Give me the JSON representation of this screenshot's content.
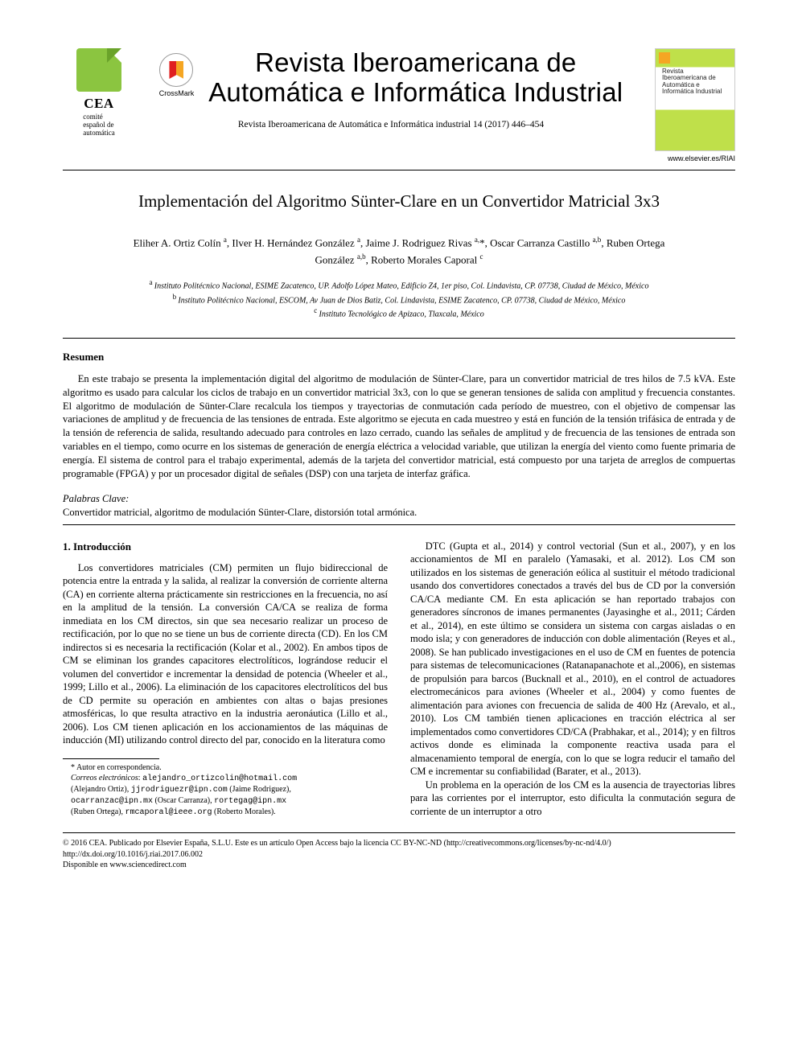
{
  "header": {
    "cea": {
      "name": "CEA",
      "sub1": "comité",
      "sub2": "español de",
      "sub3": "automática",
      "badge_color": "#8bc540"
    },
    "crossmark_label": "CrossMark",
    "journal_line1": "Revista Iberoamericana de",
    "journal_line2": "Automática e Informática Industrial",
    "citation": "Revista Iberoamericana de Automática e Informática industrial 14 (2017) 446–454",
    "cover_title": "Revista Iberoamericana de Automática e Informática Industrial",
    "cover_url": "www.elsevier.es/RIAI"
  },
  "title": "Implementación del Algoritmo Sünter-Clare en un Convertidor Matricial 3x3",
  "authors_html": "Eliher A. Ortiz Colín <sup>a</sup>, Ilver H. Hernández González <sup>a</sup>, Jaime J. Rodriguez Rivas <sup>a,</sup>*, Oscar Carranza Castillo <sup>a,b</sup>, Ruben Ortega González <sup>a,b</sup>, Roberto Morales Caporal <sup>c</sup>",
  "authors": {
    "line1_prefix": "Eliher A. Ortiz Colín ",
    "a1_sup": "a",
    "sep1": ", Ilver H. Hernández González ",
    "a2_sup": "a",
    "sep2": ", Jaime J. Rodriguez Rivas ",
    "a3_sup": "a,",
    "star": "*",
    "sep3": ", Oscar Carranza Castillo ",
    "a4_sup": "a,b",
    "sep4": ", Ruben Ortega",
    "line2_prefix": "González ",
    "a5_sup": "a,b",
    "sep5": ", Roberto Morales Caporal ",
    "a6_sup": "c"
  },
  "affiliations": {
    "a": "Instituto Politécnico Nacional, ESIME Zacatenco, UP. Adolfo López Mateo, Edificio Z4, 1er piso, Col. Lindavista, CP. 07738, Ciudad de México, México",
    "b": "Instituto Politécnico Nacional, ESCOM, Av Juan de Dios Batiz, Col. Lindavista, ESIME Zacatenco, CP. 07738, Ciudad de México, México",
    "c": "Instituto Tecnológico de Apizaco, Tlaxcala, México",
    "sup_a": "a ",
    "sup_b": "b ",
    "sup_c": "c "
  },
  "resumen": {
    "heading": "Resumen",
    "body": "En este trabajo se presenta la implementación digital del algoritmo de modulación de Sünter-Clare, para un convertidor matricial de tres hilos de 7.5 kVA. Este algoritmo es usado para calcular los ciclos de trabajo en un convertidor matricial 3x3, con lo que se generan tensiones de salida con amplitud y frecuencia constantes. El algoritmo de modulación de Sünter-Clare recalcula los tiempos y trayectorias de conmutación cada período de muestreo, con el objetivo de compensar las variaciones de amplitud y de frecuencia de las tensiones de entrada. Este algoritmo se ejecuta en cada muestreo y está en función de la tensión trifásica de entrada y de la tensión de referencia de salida, resultando adecuado para controles en lazo cerrado, cuando las señales de amplitud y de frecuencia de las tensiones de entrada son variables en el tiempo, como ocurre en los sistemas de generación de energía eléctrica a velocidad variable, que utilizan la energía del viento como fuente primaria de energía. El sistema de control para el trabajo experimental, además de la tarjeta del convertidor matricial, está compuesto por una tarjeta de arreglos de compuertas programable (FPGA) y por un procesador digital de señales (DSP) con una tarjeta de interfaz gráfica."
  },
  "keywords": {
    "label": "Palabras Clave:",
    "text": "Convertidor matricial, algoritmo de modulación Sünter-Clare, distorsión total armónica."
  },
  "section1": {
    "heading": "1.    Introducción",
    "p1": "Los convertidores matriciales (CM) permiten un flujo bidireccional de potencia entre la entrada y la salida, al realizar la conversión de corriente alterna (CA) en corriente alterna prácticamente sin restricciones en la frecuencia, no así en la amplitud de la tensión. La conversión CA/CA se realiza de forma inmediata en los CM directos, sin que sea necesario realizar un proceso de rectificación, por lo que no se tiene un bus de corriente directa (CD). En los CM indirectos si es necesaria la rectificación (Kolar et al., 2002). En ambos tipos de CM se eliminan los grandes capacitores electrolíticos, lográndose reducir el volumen del convertidor e incrementar la densidad de potencia (Wheeler et al., 1999; Lillo et al., 2006). La eliminación de los capacitores electrolíticos del bus de CD permite su operación en ambientes con altas o bajas presiones atmosféricas, lo que resulta atractivo en la industria aeronáutica (Lillo et al., 2006). Los CM tienen aplicación en los accionamientos de las máquinas de inducción (MI) utilizando control directo del par, conocido en la literatura como",
    "p2": "DTC (Gupta et al., 2014) y control vectorial (Sun et al., 2007), y en los accionamientos de MI en paralelo (Yamasaki, et al. 2012). Los CM son utilizados en los sistemas de generación eólica al sustituir el método tradicional usando dos convertidores conectados a través del bus de CD por la conversión CA/CA mediante CM. En esta aplicación se han reportado trabajos con generadores síncronos de imanes permanentes (Jayasinghe et al., 2011; Cárden et al., 2014), en este último se considera un sistema con cargas aisladas o en modo isla; y con generadores de inducción con doble alimentación (Reyes et al., 2008). Se han publicado investigaciones en el uso de CM en fuentes de potencia para sistemas de telecomunicaciones (Ratanapanachote et al.,2006), en sistemas de propulsión para barcos (Bucknall et al., 2010), en el control de actuadores electromecánicos para aviones (Wheeler et al., 2004) y como fuentes de alimentación para aviones con frecuencia de salida de 400 Hz (Arevalo, et al., 2010). Los CM también tienen aplicaciones en tracción eléctrica al ser implementados como convertidores CD/CA (Prabhakar, et al., 2014); y en filtros activos donde es eliminada la componente reactiva usada para el almacenamiento temporal de energía, con lo que se logra reducir el tamaño del CM e incrementar su confiabilidad (Barater, et al., 2013).",
    "p3": "Un problema en la operación de los CM es la ausencia de trayectorias libres para las corrientes por el interruptor, esto dificulta la conmutación segura de corriente de un interruptor a otro"
  },
  "footnotes": {
    "corr": "* Autor en correspondencia.",
    "emails_label": "Correos electrónicos",
    "email1": "alejandro_ortizcolin@hotmail.com",
    "name1": "(Alejandro Ortiz), ",
    "email2": "jjrodriguezr@ipn.com",
    "name2": " (Jaime Rodriguez),",
    "email3": "ocarranzac@ipn.mx",
    "name3": " (Oscar Carranza), ",
    "email4": "rortegag@ipn.mx",
    "name4": "(Ruben Ortega), ",
    "email5": "rmcaporal@ieee.org",
    "name5": " (Roberto Morales)."
  },
  "copyright": {
    "line1": "© 2016 CEA. Publicado por Elsevier España, S.L.U. Este es un artículo Open Access bajo la licencia CC BY-NC-ND (http://creativecommons.org/licenses/by-nc-nd/4.0/)",
    "line2": "http://dx.doi.org/10.1016/j.riai.2017.06.002",
    "line3": "Disponible en www.sciencedirect.com"
  },
  "colors": {
    "text": "#000000",
    "background": "#ffffff",
    "cea_green": "#8bc540",
    "rule": "#000000"
  },
  "typography": {
    "body_family": "Times New Roman",
    "body_size_pt": 10,
    "title_size_pt": 16,
    "journal_size_pt": 25,
    "journal_family": "Arial Narrow"
  }
}
